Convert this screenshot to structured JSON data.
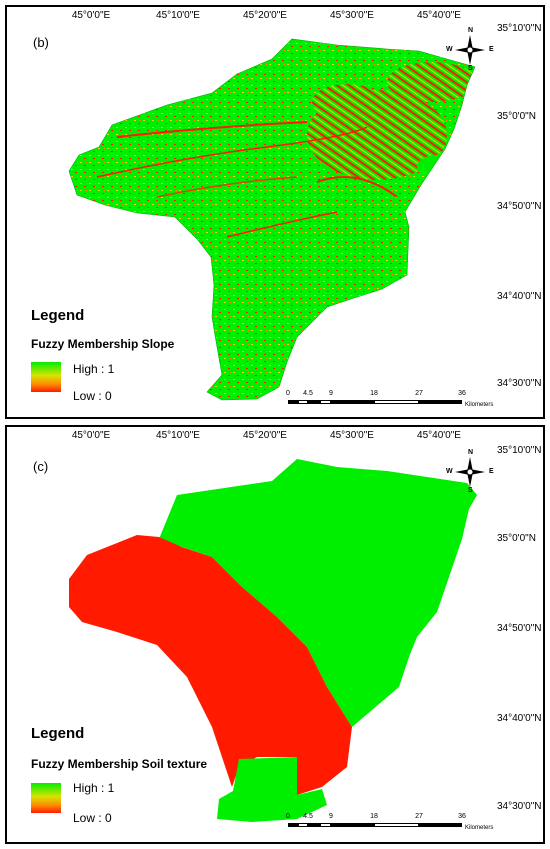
{
  "panels": [
    {
      "label": "(b)",
      "legend_title": "Legend",
      "layer_name": "Fuzzy Membership Slope",
      "high_label": "High : 1",
      "low_label": "Low :  0"
    },
    {
      "label": "(c)",
      "legend_title": "Legend",
      "layer_name": "Fuzzy Membership Soil texture",
      "high_label": "High : 1",
      "low_label": "Low :  0"
    }
  ],
  "longitude_ticks": [
    "45°0'0\"E",
    "45°10'0\"E",
    "45°20'0\"E",
    "45°30'0\"E",
    "45°40'0\"E"
  ],
  "latitude_ticks": [
    "35°10'0\"N",
    "35°0'0\"N",
    "34°50'0\"N",
    "34°40'0\"N",
    "34°30'0\"N"
  ],
  "scale_bar": {
    "labels": [
      "0",
      "4.5",
      "9",
      "18",
      "27",
      "36"
    ],
    "unit": "Kilometers"
  },
  "compass": {
    "n": "N",
    "s": "S",
    "e": "E",
    "w": "W"
  },
  "colors": {
    "high": "#00ee00",
    "mid": "#ffd000",
    "low": "#ff1a00"
  }
}
